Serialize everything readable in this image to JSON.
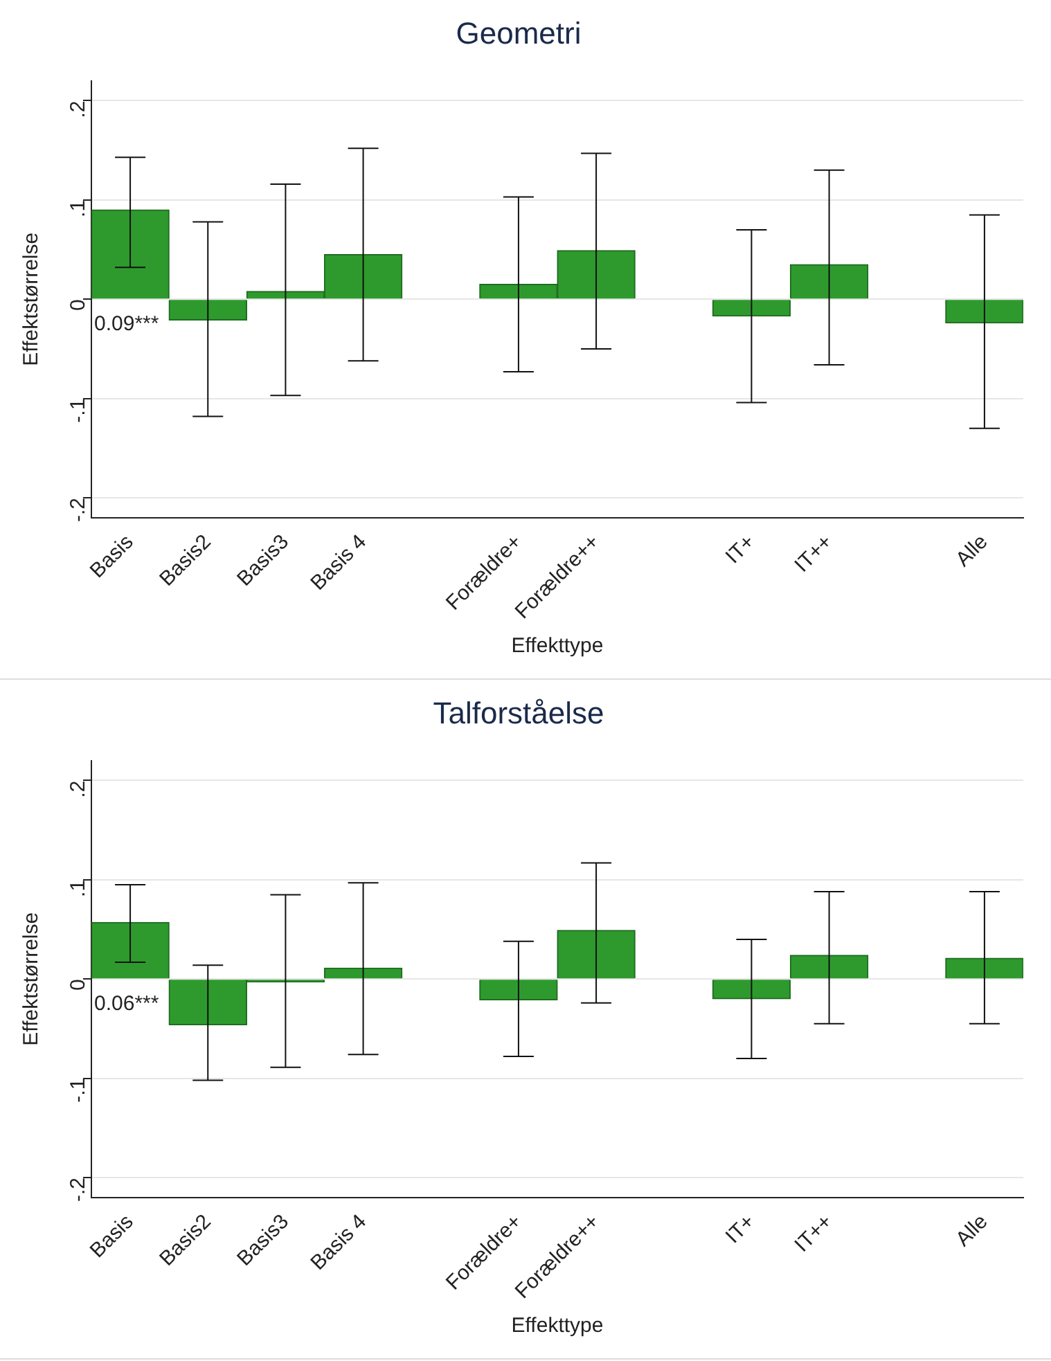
{
  "chart_data": [
    {
      "type": "bar",
      "title": "Geometri",
      "xlabel": "Effekttype",
      "ylabel": "Effektstørrelse",
      "categories": [
        "Basis",
        "Basis2",
        "Basis3",
        "Basis 4",
        null,
        "Forældre+",
        "Forældre++",
        null,
        "IT+",
        "IT++",
        null,
        "Alle"
      ],
      "color": "#2e9a2e",
      "values": [
        0.09,
        -0.021,
        0.008,
        0.045,
        null,
        0.015,
        0.049,
        null,
        -0.017,
        0.035,
        null,
        -0.024
      ],
      "errors": [
        [
          0.032,
          0.143
        ],
        [
          -0.118,
          0.078
        ],
        [
          -0.097,
          0.116
        ],
        [
          -0.062,
          0.152
        ],
        null,
        [
          -0.073,
          0.103
        ],
        [
          -0.05,
          0.147
        ],
        null,
        [
          -0.104,
          0.07
        ],
        [
          -0.066,
          0.13
        ],
        null,
        [
          -0.13,
          0.085
        ]
      ],
      "value_labels": [
        "0.09***",
        null,
        null,
        null,
        null,
        null,
        null,
        null,
        null,
        null,
        null,
        null
      ],
      "ylim": [
        -0.22,
        0.22
      ],
      "yticks": [
        {
          "value": -0.2,
          "label": "-.2"
        },
        {
          "value": -0.1,
          "label": "-.1"
        },
        0,
        {
          "value": 0.1,
          "label": ".1"
        },
        {
          "value": 0.2,
          "label": ".2"
        }
      ],
      "grid": "y",
      "legend": false
    },
    {
      "type": "bar",
      "title": "Talforståelse",
      "xlabel": "Effekttype",
      "ylabel": "Effektstørrelse",
      "categories": [
        "Basis",
        "Basis2",
        "Basis3",
        "Basis 4",
        null,
        "Forældre+",
        "Forældre++",
        null,
        "IT+",
        "IT++",
        null,
        "Alle"
      ],
      "color": "#2e9a2e",
      "values": [
        0.057,
        -0.046,
        -0.003,
        0.011,
        null,
        -0.021,
        0.049,
        null,
        -0.02,
        0.024,
        null,
        0.021
      ],
      "errors": [
        [
          0.017,
          0.095
        ],
        [
          -0.102,
          0.014
        ],
        [
          -0.089,
          0.085
        ],
        [
          -0.076,
          0.097
        ],
        null,
        [
          -0.078,
          0.038
        ],
        [
          -0.024,
          0.117
        ],
        null,
        [
          -0.08,
          0.04
        ],
        [
          -0.045,
          0.088
        ],
        null,
        [
          -0.045,
          0.088
        ]
      ],
      "value_labels": [
        "0.06***",
        null,
        null,
        null,
        null,
        null,
        null,
        null,
        null,
        null,
        null,
        null
      ],
      "ylim": [
        -0.22,
        0.22
      ],
      "yticks": [
        {
          "value": -0.2,
          "label": "-.2"
        },
        {
          "value": -0.1,
          "label": "-.1"
        },
        0,
        {
          "value": 0.1,
          "label": ".1"
        },
        {
          "value": 0.2,
          "label": ".2"
        }
      ],
      "grid": "y",
      "legend": false
    }
  ]
}
